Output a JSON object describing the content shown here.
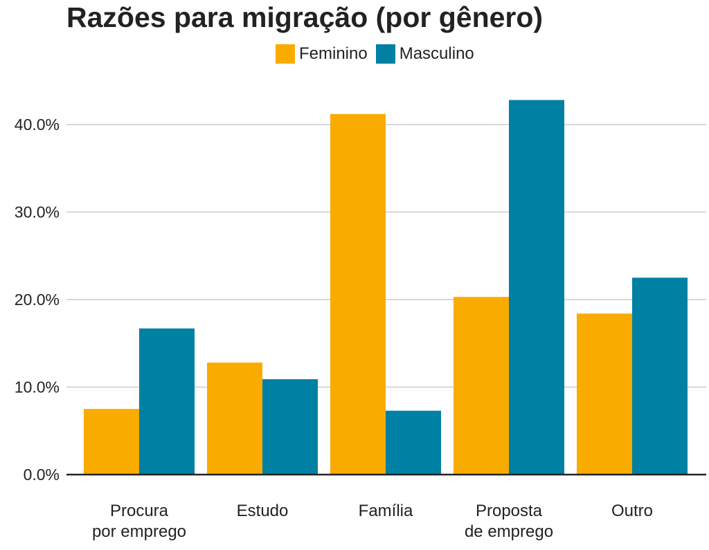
{
  "chart_data": {
    "type": "bar",
    "title": "Razões para migração (por gênero)",
    "categories": [
      [
        "Procura",
        "por emprego"
      ],
      [
        "Estudo"
      ],
      [
        "Família"
      ],
      [
        "Proposta",
        "de emprego"
      ],
      [
        "Outro"
      ]
    ],
    "series": [
      {
        "name": "Feminino",
        "color": "#FAAB00",
        "values": [
          7.5,
          12.8,
          41.2,
          20.3,
          18.4
        ]
      },
      {
        "name": "Masculino",
        "color": "#0080A3",
        "values": [
          16.7,
          10.9,
          7.3,
          42.8,
          22.5
        ]
      }
    ],
    "yticks": [
      "0.0%",
      "10.0%",
      "20.0%",
      "30.0%",
      "40.0%"
    ],
    "ylim": [
      0,
      40
    ],
    "grid": true,
    "legend": "top"
  }
}
